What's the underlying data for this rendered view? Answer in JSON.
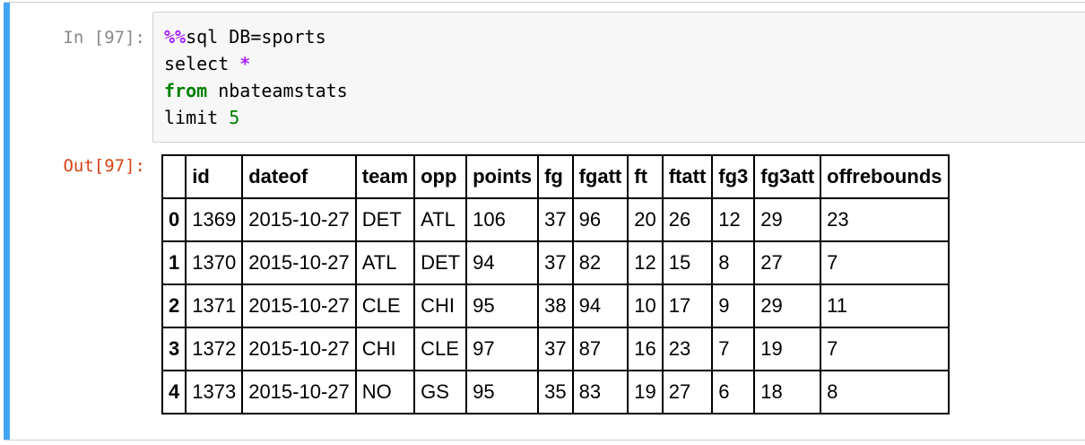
{
  "cell": {
    "input_prompt": "In [97]:",
    "output_prompt": "Out[97]:",
    "code": {
      "line1_magic": "%%",
      "line1_rest": "sql DB=sports",
      "line2_kw": "select",
      "line2_op": "*",
      "line3_kw": "from",
      "line3_rest": "nbateamstats",
      "line4_kw": "limit",
      "line4_num": "5"
    }
  },
  "table": {
    "columns": [
      "",
      "id",
      "dateof",
      "team",
      "opp",
      "points",
      "fg",
      "fgatt",
      "ft",
      "ftatt",
      "fg3",
      "fg3att",
      "offrebounds"
    ],
    "rows": [
      [
        "0",
        "1369",
        "2015-10-27",
        "DET",
        "ATL",
        "106",
        "37",
        "96",
        "20",
        "26",
        "12",
        "29",
        "23"
      ],
      [
        "1",
        "1370",
        "2015-10-27",
        "ATL",
        "DET",
        "94",
        "37",
        "82",
        "12",
        "15",
        "8",
        "27",
        "7"
      ],
      [
        "2",
        "1371",
        "2015-10-27",
        "CLE",
        "CHI",
        "95",
        "38",
        "94",
        "10",
        "17",
        "9",
        "29",
        "11"
      ],
      [
        "3",
        "1372",
        "2015-10-27",
        "CHI",
        "CLE",
        "97",
        "37",
        "87",
        "16",
        "23",
        "7",
        "19",
        "7"
      ],
      [
        "4",
        "1373",
        "2015-10-27",
        "NO",
        "GS",
        "95",
        "35",
        "83",
        "19",
        "27",
        "6",
        "18",
        "8"
      ]
    ]
  },
  "colors": {
    "cell_bar": "#42a5f5",
    "out_prompt": "#d84315",
    "magic": "#aa22ff",
    "keyword": "#008000"
  }
}
